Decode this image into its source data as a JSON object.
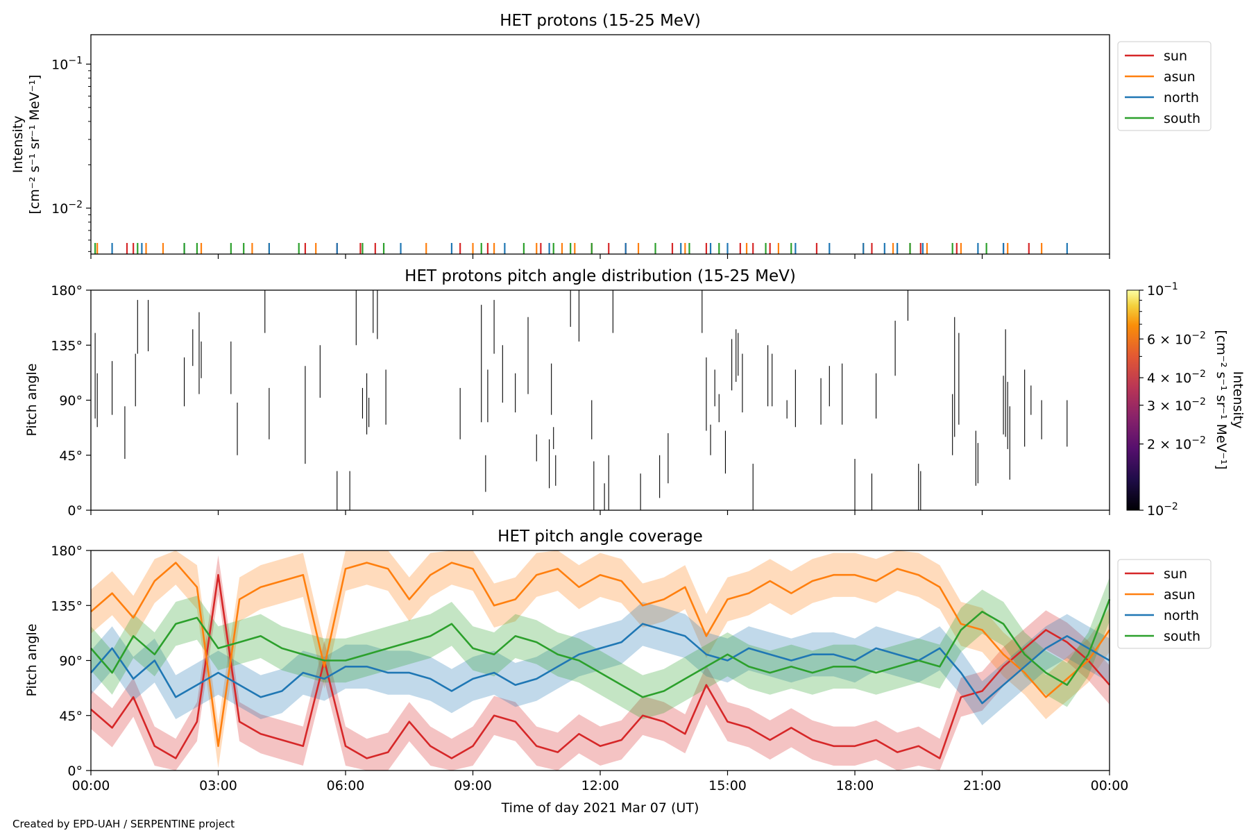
{
  "credit": "Created by EPD-UAH / SERPENTINE project",
  "xaxis": {
    "label": "Time of day 2021 Mar 07 (UT)",
    "range_hours": [
      0,
      24
    ],
    "ticks": [
      {
        "hour": 0,
        "label": "00:00"
      },
      {
        "hour": 3,
        "label": "03:00"
      },
      {
        "hour": 6,
        "label": "06:00"
      },
      {
        "hour": 9,
        "label": "09:00"
      },
      {
        "hour": 12,
        "label": "12:00"
      },
      {
        "hour": 15,
        "label": "15:00"
      },
      {
        "hour": 18,
        "label": "18:00"
      },
      {
        "hour": 21,
        "label": "21:00"
      },
      {
        "hour": 24,
        "label": "00:00"
      }
    ]
  },
  "colors": {
    "sun": "#d62728",
    "asun": "#ff7f0e",
    "north": "#1f77b4",
    "south": "#2ca02c"
  },
  "legend": [
    {
      "key": "sun",
      "label": "sun"
    },
    {
      "key": "asun",
      "label": "asun"
    },
    {
      "key": "north",
      "label": "north"
    },
    {
      "key": "south",
      "label": "south"
    }
  ],
  "chart_data": [
    {
      "type": "line",
      "title": "HET protons (15-25 MeV)",
      "ylabel_line1": "Intensity",
      "ylabel_line2": "[cm⁻² s⁻¹ sr⁻¹ MeV⁻¹]",
      "yscale": "log",
      "ylim": [
        0.0048,
        0.16
      ],
      "yticks": [
        {
          "value": 0.01,
          "base": "10",
          "exp": "−2"
        },
        {
          "value": 0.1,
          "base": "10",
          "exp": "−1"
        }
      ],
      "legend_position": "upper right outside",
      "series": [
        {
          "name": "sun",
          "spike_hours": [
            0.85,
            1.0,
            5.05,
            5.8,
            6.35,
            6.7,
            8.7,
            9.35,
            10.6,
            11.8,
            12.2,
            12.6,
            13.7,
            14.5,
            15.3,
            15.6,
            16.0,
            17.1,
            18.4,
            19.3,
            19.55,
            20.4,
            21.5,
            22.1
          ]
        },
        {
          "name": "asun",
          "spike_hours": [
            0.15,
            1.3,
            1.7,
            2.6,
            3.8,
            4.2,
            5.3,
            7.9,
            9.0,
            9.5,
            10.5,
            11.1,
            11.4,
            12.9,
            14.0,
            15.45,
            16.2,
            18.2,
            18.9,
            19.7,
            20.5,
            21.6,
            22.4
          ]
        },
        {
          "name": "north",
          "spike_hours": [
            0.5,
            1.2,
            2.2,
            4.2,
            5.8,
            7.3,
            8.5,
            9.75,
            10.8,
            12.6,
            13.9,
            14.6,
            15.0,
            16.6,
            17.4,
            18.2,
            18.7,
            19.0,
            19.6,
            20.9,
            21.5,
            23.0
          ]
        },
        {
          "name": "south",
          "spike_hours": [
            0.1,
            1.1,
            2.2,
            2.5,
            3.3,
            3.6,
            4.9,
            6.4,
            6.9,
            9.2,
            10.2,
            10.9,
            11.3,
            11.8,
            13.3,
            14.1,
            14.8,
            15.9,
            16.5,
            19.3,
            20.3,
            21.1
          ]
        }
      ]
    },
    {
      "type": "heatmap",
      "title": "HET protons pitch angle distribution (15-25 MeV)",
      "ylabel": "Pitch angle",
      "ylim": [
        0,
        180
      ],
      "yticks": [
        {
          "value": 0,
          "label": "0°"
        },
        {
          "value": 45,
          "label": "45°"
        },
        {
          "value": 90,
          "label": "90°"
        },
        {
          "value": 135,
          "label": "135°"
        },
        {
          "value": 180,
          "label": "180°"
        }
      ],
      "colorbar": {
        "scale": "log",
        "range": [
          0.01,
          0.1
        ],
        "colormap": "inferno",
        "label_line1": "Intensity",
        "label_line2": "[cm⁻² s⁻¹ sr⁻¹ MeV⁻¹]",
        "ticks": [
          {
            "value": 0.1,
            "mant": "",
            "base": "10",
            "exp": "−1"
          },
          {
            "value": 0.06,
            "mant": "6 × ",
            "base": "10",
            "exp": "−2"
          },
          {
            "value": 0.04,
            "mant": "4 × ",
            "base": "10",
            "exp": "−2"
          },
          {
            "value": 0.03,
            "mant": "3 × ",
            "base": "10",
            "exp": "−2"
          },
          {
            "value": 0.02,
            "mant": "2 × ",
            "base": "10",
            "exp": "−2"
          },
          {
            "value": 0.01,
            "mant": "",
            "base": "10",
            "exp": "−2"
          }
        ]
      },
      "segments": [
        {
          "t": 0.1,
          "a0": 75,
          "a1": 145
        },
        {
          "t": 0.15,
          "a0": 68,
          "a1": 112
        },
        {
          "t": 0.5,
          "a0": 78,
          "a1": 122
        },
        {
          "t": 0.8,
          "a0": 42,
          "a1": 85
        },
        {
          "t": 1.05,
          "a0": 85,
          "a1": 128
        },
        {
          "t": 1.1,
          "a0": 128,
          "a1": 172
        },
        {
          "t": 1.35,
          "a0": 130,
          "a1": 172
        },
        {
          "t": 2.2,
          "a0": 85,
          "a1": 125
        },
        {
          "t": 2.4,
          "a0": 118,
          "a1": 148
        },
        {
          "t": 2.55,
          "a0": 95,
          "a1": 162
        },
        {
          "t": 2.6,
          "a0": 108,
          "a1": 138
        },
        {
          "t": 3.3,
          "a0": 95,
          "a1": 138
        },
        {
          "t": 3.45,
          "a0": 45,
          "a1": 88
        },
        {
          "t": 4.1,
          "a0": 145,
          "a1": 180
        },
        {
          "t": 4.2,
          "a0": 58,
          "a1": 100
        },
        {
          "t": 5.05,
          "a0": 38,
          "a1": 118
        },
        {
          "t": 5.4,
          "a0": 92,
          "a1": 135
        },
        {
          "t": 5.8,
          "a0": 0,
          "a1": 32
        },
        {
          "t": 6.1,
          "a0": 0,
          "a1": 32
        },
        {
          "t": 6.25,
          "a0": 135,
          "a1": 180
        },
        {
          "t": 6.4,
          "a0": 75,
          "a1": 100
        },
        {
          "t": 6.5,
          "a0": 62,
          "a1": 112
        },
        {
          "t": 6.55,
          "a0": 68,
          "a1": 92
        },
        {
          "t": 6.65,
          "a0": 145,
          "a1": 180
        },
        {
          "t": 6.75,
          "a0": 140,
          "a1": 180
        },
        {
          "t": 6.95,
          "a0": 70,
          "a1": 115
        },
        {
          "t": 8.7,
          "a0": 58,
          "a1": 100
        },
        {
          "t": 9.2,
          "a0": 72,
          "a1": 168
        },
        {
          "t": 9.3,
          "a0": 15,
          "a1": 45
        },
        {
          "t": 9.35,
          "a0": 72,
          "a1": 115
        },
        {
          "t": 9.5,
          "a0": 128,
          "a1": 172
        },
        {
          "t": 9.7,
          "a0": 88,
          "a1": 135
        },
        {
          "t": 10.0,
          "a0": 80,
          "a1": 112
        },
        {
          "t": 10.3,
          "a0": 95,
          "a1": 158
        },
        {
          "t": 10.5,
          "a0": 40,
          "a1": 62
        },
        {
          "t": 10.8,
          "a0": 18,
          "a1": 58
        },
        {
          "t": 10.85,
          "a0": 78,
          "a1": 120
        },
        {
          "t": 10.9,
          "a0": 50,
          "a1": 68
        },
        {
          "t": 10.95,
          "a0": 20,
          "a1": 45
        },
        {
          "t": 11.3,
          "a0": 150,
          "a1": 180
        },
        {
          "t": 11.5,
          "a0": 138,
          "a1": 180
        },
        {
          "t": 11.8,
          "a0": 58,
          "a1": 90
        },
        {
          "t": 11.85,
          "a0": 0,
          "a1": 40
        },
        {
          "t": 12.1,
          "a0": 0,
          "a1": 22
        },
        {
          "t": 12.2,
          "a0": 0,
          "a1": 45
        },
        {
          "t": 12.3,
          "a0": 145,
          "a1": 180
        },
        {
          "t": 12.95,
          "a0": 0,
          "a1": 30
        },
        {
          "t": 13.4,
          "a0": 10,
          "a1": 45
        },
        {
          "t": 13.6,
          "a0": 22,
          "a1": 63
        },
        {
          "t": 14.4,
          "a0": 145,
          "a1": 180
        },
        {
          "t": 14.5,
          "a0": 65,
          "a1": 125
        },
        {
          "t": 14.6,
          "a0": 45,
          "a1": 70
        },
        {
          "t": 14.7,
          "a0": 85,
          "a1": 115
        },
        {
          "t": 14.8,
          "a0": 72,
          "a1": 95
        },
        {
          "t": 14.95,
          "a0": 30,
          "a1": 65
        },
        {
          "t": 15.1,
          "a0": 98,
          "a1": 140
        },
        {
          "t": 15.2,
          "a0": 105,
          "a1": 148
        },
        {
          "t": 15.25,
          "a0": 110,
          "a1": 145
        },
        {
          "t": 15.35,
          "a0": 80,
          "a1": 128
        },
        {
          "t": 15.6,
          "a0": 0,
          "a1": 38
        },
        {
          "t": 15.95,
          "a0": 85,
          "a1": 135
        },
        {
          "t": 16.05,
          "a0": 85,
          "a1": 128
        },
        {
          "t": 16.4,
          "a0": 75,
          "a1": 90
        },
        {
          "t": 16.6,
          "a0": 68,
          "a1": 115
        },
        {
          "t": 17.2,
          "a0": 70,
          "a1": 108
        },
        {
          "t": 17.4,
          "a0": 85,
          "a1": 118
        },
        {
          "t": 17.7,
          "a0": 70,
          "a1": 120
        },
        {
          "t": 18.0,
          "a0": 0,
          "a1": 42
        },
        {
          "t": 18.4,
          "a0": 0,
          "a1": 30
        },
        {
          "t": 18.5,
          "a0": 75,
          "a1": 112
        },
        {
          "t": 18.95,
          "a0": 110,
          "a1": 155
        },
        {
          "t": 19.25,
          "a0": 155,
          "a1": 180
        },
        {
          "t": 19.5,
          "a0": 0,
          "a1": 38
        },
        {
          "t": 19.55,
          "a0": 0,
          "a1": 32
        },
        {
          "t": 20.3,
          "a0": 45,
          "a1": 95
        },
        {
          "t": 20.35,
          "a0": 60,
          "a1": 158
        },
        {
          "t": 20.45,
          "a0": 70,
          "a1": 145
        },
        {
          "t": 20.85,
          "a0": 20,
          "a1": 65
        },
        {
          "t": 20.9,
          "a0": 22,
          "a1": 55
        },
        {
          "t": 21.5,
          "a0": 62,
          "a1": 110
        },
        {
          "t": 21.55,
          "a0": 60,
          "a1": 148
        },
        {
          "t": 21.6,
          "a0": 50,
          "a1": 105
        },
        {
          "t": 21.65,
          "a0": 25,
          "a1": 85
        },
        {
          "t": 22.0,
          "a0": 52,
          "a1": 115
        },
        {
          "t": 22.15,
          "a0": 78,
          "a1": 102
        },
        {
          "t": 22.4,
          "a0": 58,
          "a1": 90
        },
        {
          "t": 23.0,
          "a0": 52,
          "a1": 90
        }
      ]
    },
    {
      "type": "area",
      "title": "HET pitch angle coverage",
      "ylabel": "Pitch angle",
      "ylim": [
        0,
        180
      ],
      "yticks": [
        {
          "value": 0,
          "label": "0°"
        },
        {
          "value": 45,
          "label": "45°"
        },
        {
          "value": 90,
          "label": "90°"
        },
        {
          "value": 135,
          "label": "135°"
        },
        {
          "value": 180,
          "label": "180°"
        }
      ],
      "legend_position": "upper right outside",
      "x_hours": [
        0,
        0.5,
        1,
        1.5,
        2,
        2.5,
        3,
        3.5,
        4,
        4.5,
        5,
        5.5,
        6,
        6.5,
        7,
        7.5,
        8,
        8.5,
        9,
        9.5,
        10,
        10.5,
        11,
        11.5,
        12,
        12.5,
        13,
        13.5,
        14,
        14.5,
        15,
        15.5,
        16,
        16.5,
        17,
        17.5,
        18,
        18.5,
        19,
        19.5,
        20,
        20.5,
        21,
        21.5,
        22,
        22.5,
        23,
        23.5,
        24
      ],
      "series": [
        {
          "name": "sun",
          "band_halfwidth": 16,
          "values": [
            50,
            35,
            60,
            20,
            10,
            40,
            160,
            40,
            30,
            25,
            20,
            90,
            20,
            10,
            15,
            40,
            20,
            10,
            20,
            45,
            40,
            20,
            15,
            30,
            20,
            25,
            45,
            40,
            30,
            70,
            40,
            35,
            25,
            35,
            25,
            20,
            20,
            25,
            15,
            20,
            10,
            60,
            65,
            85,
            100,
            115,
            105,
            90,
            70
          ]
        },
        {
          "name": "asun",
          "band_halfwidth": 18,
          "values": [
            130,
            145,
            125,
            155,
            170,
            150,
            20,
            140,
            150,
            155,
            160,
            85,
            165,
            170,
            165,
            140,
            160,
            170,
            165,
            135,
            140,
            160,
            165,
            150,
            160,
            155,
            135,
            140,
            150,
            110,
            140,
            145,
            155,
            145,
            155,
            160,
            160,
            155,
            165,
            160,
            150,
            120,
            115,
            95,
            80,
            60,
            75,
            90,
            115
          ]
        },
        {
          "name": "north",
          "band_halfwidth": 18,
          "values": [
            80,
            100,
            75,
            90,
            60,
            70,
            80,
            70,
            60,
            65,
            80,
            75,
            85,
            85,
            80,
            80,
            75,
            65,
            75,
            80,
            70,
            75,
            85,
            95,
            100,
            105,
            120,
            115,
            110,
            95,
            90,
            100,
            95,
            90,
            95,
            95,
            90,
            100,
            95,
            90,
            100,
            80,
            55,
            70,
            85,
            100,
            110,
            100,
            90
          ]
        },
        {
          "name": "south",
          "band_halfwidth": 18,
          "values": [
            100,
            80,
            110,
            95,
            120,
            125,
            100,
            105,
            110,
            100,
            95,
            90,
            90,
            95,
            100,
            105,
            110,
            120,
            100,
            95,
            110,
            105,
            95,
            90,
            80,
            70,
            60,
            65,
            75,
            85,
            95,
            85,
            80,
            85,
            80,
            85,
            85,
            80,
            85,
            90,
            85,
            115,
            130,
            120,
            95,
            80,
            70,
            95,
            140
          ]
        }
      ]
    }
  ]
}
